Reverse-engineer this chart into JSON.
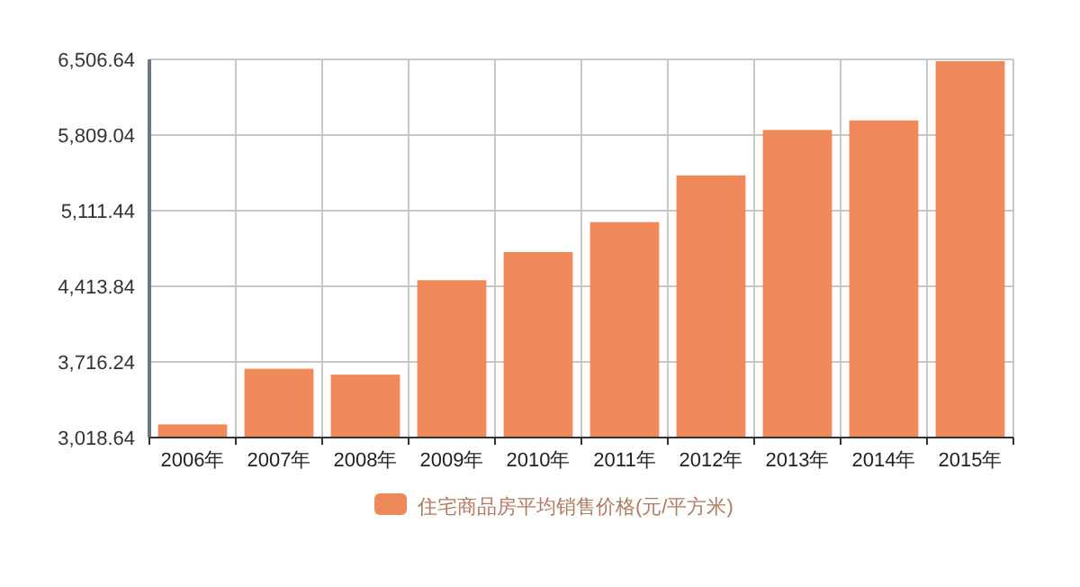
{
  "chart_data": {
    "type": "bar",
    "categories": [
      "2006年",
      "2007年",
      "2008年",
      "2009年",
      "2010年",
      "2011年",
      "2012年",
      "2013年",
      "2014年",
      "2015年"
    ],
    "series": [
      {
        "name": "住宅商品房平均销售价格(元/平方米)",
        "color": "#f0895a",
        "values": [
          3140,
          3653,
          3599,
          4470,
          4730,
          5006,
          5437,
          5856,
          5944,
          6490
        ]
      }
    ],
    "ylim": [
      3018.64,
      6506.64
    ],
    "yticks": [
      {
        "value": 3018.64,
        "label": "3,018.64"
      },
      {
        "value": 3716.24,
        "label": "3,716.24"
      },
      {
        "value": 4413.84,
        "label": "4,413.84"
      },
      {
        "value": 5111.44,
        "label": "5,111.44"
      },
      {
        "value": 5809.04,
        "label": "5,809.04"
      },
      {
        "value": 6506.64,
        "label": "6,506.64"
      }
    ],
    "grid": true,
    "legend": "bottom"
  }
}
